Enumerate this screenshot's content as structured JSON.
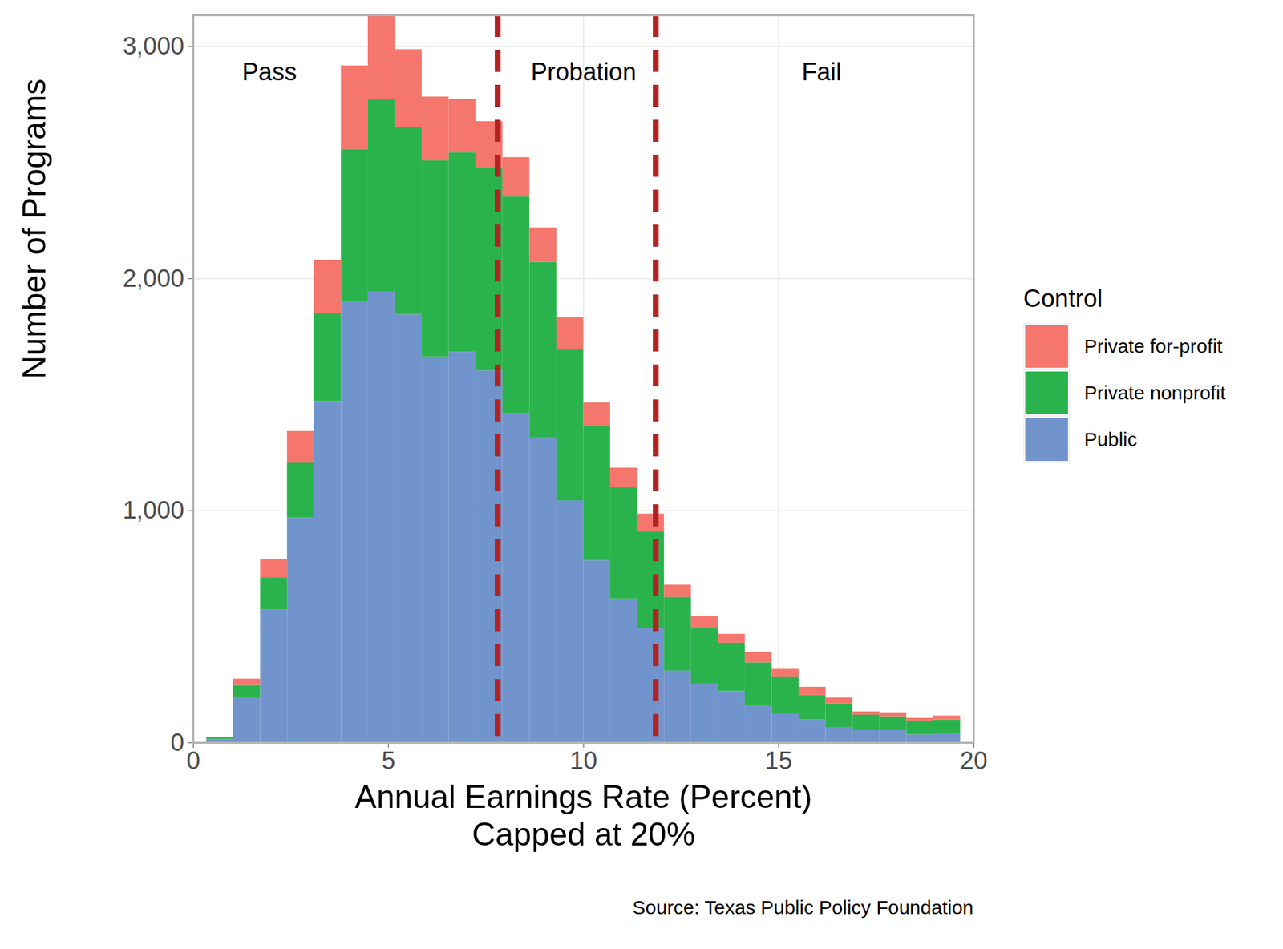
{
  "chart_data": {
    "type": "histogram",
    "stacked": true,
    "x_label": "Annual Earnings Rate (Percent)\nCapped at 20%",
    "y_label": "Number of Programs",
    "legend_title": "Control",
    "caption": "Source: Texas Public Policy Foundation",
    "bins": [
      0.34,
      1.03,
      1.72,
      2.41,
      3.1,
      3.79,
      4.48,
      5.17,
      5.86,
      6.55,
      7.24,
      7.93,
      8.62,
      9.31,
      10.0,
      10.69,
      11.38,
      12.07,
      12.76,
      13.45,
      14.14,
      14.83,
      15.52,
      16.21,
      16.9,
      17.59,
      18.28,
      18.97,
      19.66
    ],
    "series": [
      {
        "name": "Private for-profit",
        "color": "#f4766d",
        "values": [
          2,
          28,
          78,
          137,
          226,
          360,
          363,
          335,
          275,
          229,
          201,
          169,
          148,
          138,
          99,
          85,
          77,
          53,
          53,
          38,
          46,
          35,
          36,
          25,
          14,
          17,
          11,
          17
        ]
      },
      {
        "name": "Private nonprofit",
        "color": "#2ab34c",
        "values": [
          8,
          50,
          137,
          236,
          380,
          655,
          828,
          807,
          845,
          859,
          873,
          933,
          757,
          651,
          581,
          479,
          416,
          317,
          239,
          208,
          183,
          159,
          105,
          102,
          67,
          60,
          60,
          60
        ]
      },
      {
        "name": "Public",
        "color": "#7194cc",
        "values": [
          15,
          197,
          574,
          969,
          1472,
          1902,
          1944,
          1845,
          1663,
          1684,
          1603,
          1420,
          1314,
          1043,
          785,
          620,
          493,
          310,
          254,
          222,
          162,
          123,
          99,
          67,
          53,
          53,
          35,
          39
        ]
      }
    ],
    "thresholds": [
      7.8,
      11.85
    ],
    "annotations": [
      {
        "text": "Pass",
        "x": 1.95,
        "y": 2890
      },
      {
        "text": "Probation",
        "x": 10.0,
        "y": 2890
      },
      {
        "text": "Fail",
        "x": 16.1,
        "y": 2890
      }
    ],
    "xlim": [
      0,
      20
    ],
    "xticks": [
      0,
      5,
      10,
      15,
      20
    ],
    "ylim": [
      0,
      3135
    ],
    "yticks": [
      0,
      {
        "value": 1000,
        "label": "1,000"
      },
      {
        "value": 2000,
        "label": "2,000"
      },
      {
        "value": 3000,
        "label": "3,000"
      }
    ],
    "grid": true,
    "legend": "right"
  }
}
